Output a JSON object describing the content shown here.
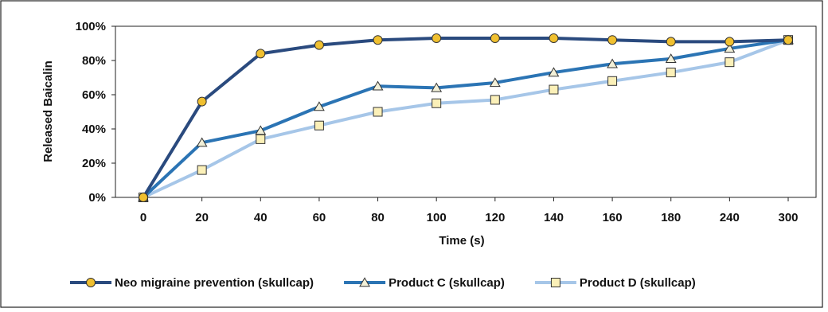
{
  "chart_data": {
    "type": "line",
    "title": "",
    "xlabel": "Time (s)",
    "ylabel": "Released Baicalin",
    "categories": [
      "0",
      "20",
      "40",
      "60",
      "80",
      "100",
      "120",
      "140",
      "160",
      "180",
      "240",
      "300"
    ],
    "y_ticks": [
      "0%",
      "20%",
      "40%",
      "60%",
      "80%",
      "100%"
    ],
    "ylim": [
      0,
      100
    ],
    "y_unit": "%",
    "grid": false,
    "legend_position": "bottom",
    "series": [
      {
        "name": "Neo migraine prevention (skullcap)",
        "marker": "circle",
        "line_color": "#2a4a7e",
        "marker_fill": "#f0c030",
        "values": [
          0,
          56,
          84,
          89,
          92,
          93,
          93,
          93,
          92,
          91,
          91,
          92
        ]
      },
      {
        "name": "Product C (skullcap)",
        "marker": "triangle",
        "line_color": "#2b74b4",
        "marker_fill": "#f2f0d8",
        "values": [
          0,
          32,
          39,
          53,
          65,
          64,
          67,
          73,
          78,
          81,
          87,
          92
        ]
      },
      {
        "name": "Product D (skullcap)",
        "marker": "square",
        "line_color": "#a6c6e8",
        "marker_fill": "#fbf0b8",
        "values": [
          0,
          16,
          34,
          42,
          50,
          55,
          57,
          63,
          68,
          73,
          79,
          92
        ]
      }
    ]
  }
}
